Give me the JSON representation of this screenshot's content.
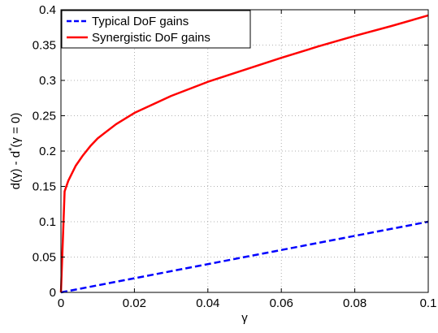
{
  "chart_data": {
    "type": "line",
    "xlabel": "γ",
    "ylabel_parts": {
      "base": "d(γ) - d",
      "sup": "*",
      "tail": "(γ = 0)"
    },
    "xlim": [
      0,
      0.1
    ],
    "ylim": [
      0,
      0.4
    ],
    "x_ticks": [
      0,
      0.02,
      0.04,
      0.06,
      0.08,
      0.1
    ],
    "x_tick_labels": [
      "0",
      "0.02",
      "0.04",
      "0.06",
      "0.08",
      "0.1"
    ],
    "y_ticks": [
      0,
      0.05,
      0.1,
      0.15,
      0.2,
      0.25,
      0.3,
      0.35,
      0.4
    ],
    "y_tick_labels": [
      "0",
      "0.05",
      "0.1",
      "0.15",
      "0.2",
      "0.25",
      "0.3",
      "0.35",
      "0.4"
    ],
    "grid": true,
    "legend_position": "top-left",
    "series": [
      {
        "name": "Typical DoF gains",
        "color": "#0000ff",
        "style": "dashed",
        "x": [
          0,
          0.1
        ],
        "y": [
          0,
          0.1
        ]
      },
      {
        "name": "Synergistic DoF gains",
        "color": "#ff0000",
        "style": "solid",
        "x": [
          0,
          0.001,
          0.002,
          0.004,
          0.006,
          0.008,
          0.01,
          0.015,
          0.02,
          0.03,
          0.04,
          0.05,
          0.06,
          0.07,
          0.08,
          0.09,
          0.1
        ],
        "y": [
          0,
          0.143,
          0.158,
          0.179,
          0.194,
          0.207,
          0.218,
          0.238,
          0.254,
          0.278,
          0.298,
          0.315,
          0.332,
          0.348,
          0.363,
          0.377,
          0.392
        ]
      }
    ]
  }
}
